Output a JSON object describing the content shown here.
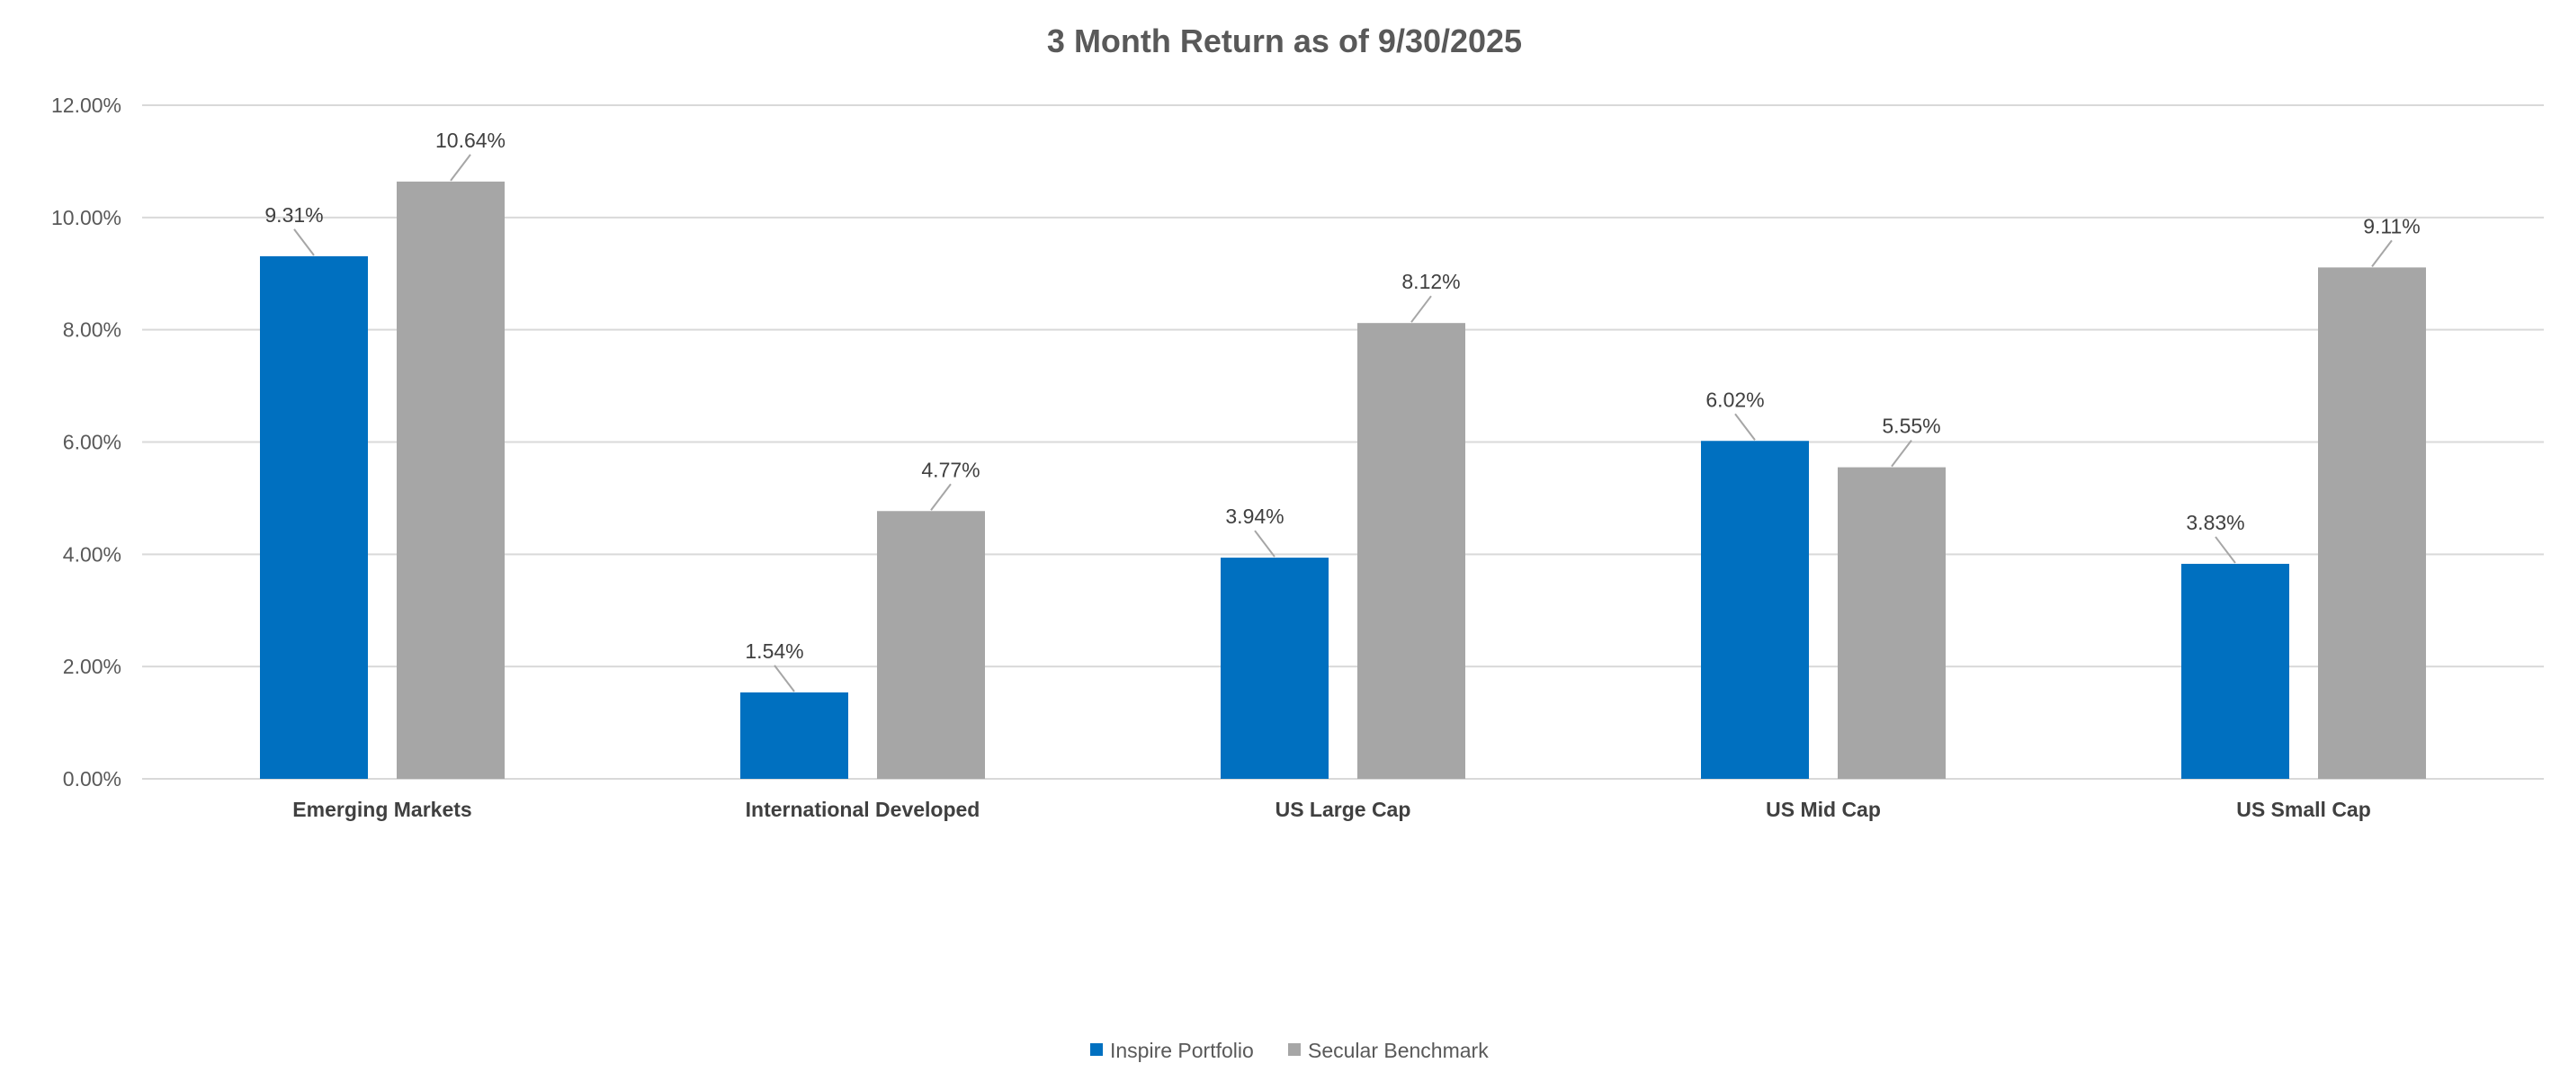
{
  "chart_data": {
    "type": "bar",
    "title": "3 Month Return as of 9/30/2025",
    "xlabel": "",
    "ylabel": "",
    "ylim": [
      0,
      12
    ],
    "yticks": [
      0,
      2,
      4,
      6,
      8,
      10,
      12
    ],
    "ytick_labels": [
      "0.00%",
      "2.00%",
      "4.00%",
      "6.00%",
      "8.00%",
      "10.00%",
      "12.00%"
    ],
    "categories": [
      "Emerging Markets",
      "International Developed",
      "US Large Cap",
      "US Mid Cap",
      "US Small Cap"
    ],
    "series": [
      {
        "name": "Inspire Portfolio",
        "color": "#0070c0",
        "values": [
          9.31,
          1.54,
          3.94,
          6.02,
          3.83
        ],
        "labels": [
          "9.31%",
          "1.54%",
          "3.94%",
          "6.02%",
          "3.83%"
        ]
      },
      {
        "name": "Secular Benchmark",
        "color": "#a6a6a6",
        "values": [
          10.64,
          4.77,
          8.12,
          5.55,
          9.11
        ],
        "labels": [
          "10.64%",
          "4.77%",
          "8.12%",
          "5.55%",
          "9.11%"
        ]
      }
    ],
    "legend": "bottom",
    "grid": true
  }
}
